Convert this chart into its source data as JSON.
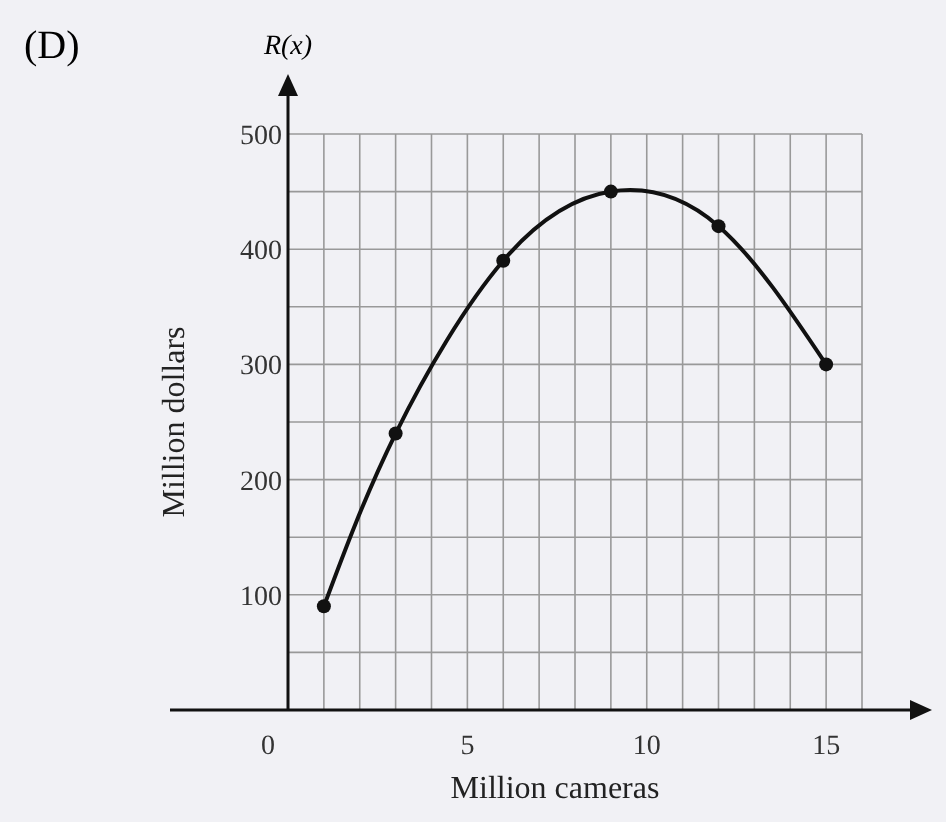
{
  "chart_data": {
    "type": "line",
    "title": "(D)",
    "xlabel": "Million cameras",
    "ylabel": "Million dollars",
    "annotations": [
      "R(x)"
    ],
    "x": [
      1,
      3,
      6,
      9,
      12,
      15
    ],
    "series": [
      {
        "color": "#111111",
        "values": [
          90,
          240,
          390,
          450,
          420,
          300
        ]
      }
    ],
    "xlim": [
      0,
      16
    ],
    "ylim": [
      0,
      500
    ],
    "xticks": [
      0,
      {
        "value": 1,
        "label": null
      },
      {
        "value": 2,
        "label": null
      },
      {
        "value": 3,
        "label": null
      },
      {
        "value": 4,
        "label": null
      },
      5,
      {
        "value": 6,
        "label": null
      },
      {
        "value": 7,
        "label": null
      },
      {
        "value": 8,
        "label": null
      },
      {
        "value": 9,
        "label": null
      },
      10,
      {
        "value": 11,
        "label": null
      },
      {
        "value": 12,
        "label": null
      },
      {
        "value": 13,
        "label": null
      },
      {
        "value": 14,
        "label": null
      },
      15,
      {
        "value": 16,
        "label": null
      }
    ],
    "yticks": [
      {
        "value": 50,
        "label": null
      },
      100,
      {
        "value": 150,
        "label": null
      },
      200,
      {
        "value": 250,
        "label": null
      },
      300,
      {
        "value": 350,
        "label": null
      },
      400,
      {
        "value": 450,
        "label": null
      },
      500
    ],
    "grid": true,
    "marker": "circle",
    "line_style": "solid"
  }
}
